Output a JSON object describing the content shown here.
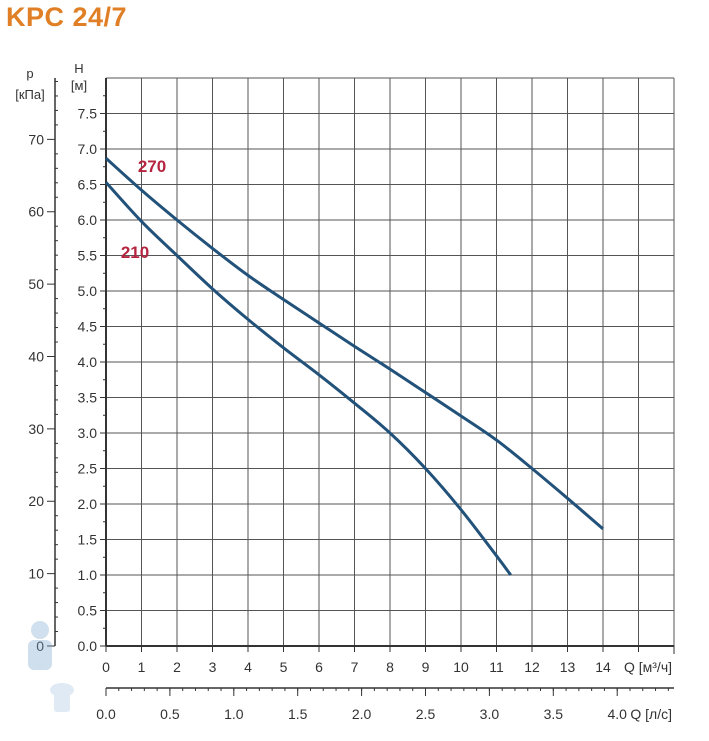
{
  "chart_data": {
    "type": "line",
    "title": "KPC 24/7",
    "xlabel": "Q [м³/ч]",
    "xlabel2": "Q [л/с]",
    "ylabel_h": "H",
    "ylabel_h_unit": "[м]",
    "ylabel_p": "p",
    "ylabel_p_unit": "[кПа]",
    "xlim": [
      0,
      16
    ],
    "ylim": [
      0,
      8
    ],
    "x_ticks": [
      "0",
      "1",
      "2",
      "3",
      "4",
      "5",
      "6",
      "7",
      "8",
      "9",
      "10",
      "11",
      "12",
      "13",
      "14"
    ],
    "x2_ticks": [
      "0.0",
      "0.5",
      "1.0",
      "1.5",
      "2.0",
      "2.5",
      "3.0",
      "3.5",
      "4.0"
    ],
    "y_ticks": [
      "0.0",
      "0.5",
      "1.0",
      "1.5",
      "2.0",
      "2.5",
      "3.0",
      "3.5",
      "4.0",
      "4.5",
      "5.0",
      "5.5",
      "6.0",
      "6.5",
      "7.0",
      "7.5"
    ],
    "p_ticks": [
      "0",
      "10",
      "20",
      "30",
      "40",
      "50",
      "60",
      "70"
    ],
    "grid": true,
    "series": [
      {
        "name": "270",
        "x": [
          0,
          1,
          2,
          3,
          4,
          5,
          6,
          7,
          8,
          9,
          10,
          11,
          12,
          13,
          14
        ],
        "y": [
          6.87,
          6.42,
          6.0,
          5.6,
          5.22,
          4.88,
          4.55,
          4.22,
          3.9,
          3.57,
          3.24,
          2.9,
          2.5,
          2.08,
          1.65
        ]
      },
      {
        "name": "210",
        "x": [
          0,
          1,
          2,
          3,
          4,
          5,
          6,
          7,
          8,
          9,
          10,
          11,
          11.4
        ],
        "y": [
          6.53,
          5.98,
          5.5,
          5.03,
          4.6,
          4.2,
          3.82,
          3.42,
          3.0,
          2.5,
          1.92,
          1.27,
          1.0
        ]
      }
    ],
    "colors": {
      "line": "#22527a",
      "label": "#b5253f",
      "title": "#e07f25"
    }
  }
}
